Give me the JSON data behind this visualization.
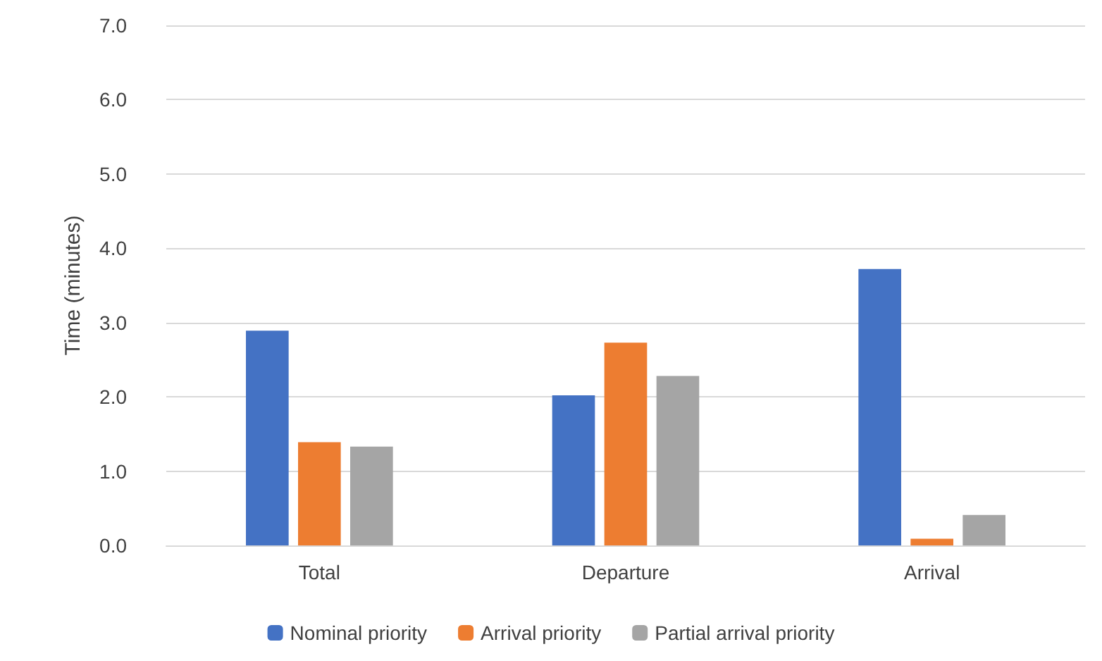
{
  "chart_data": {
    "type": "bar",
    "ylabel": "Time (minutes)",
    "categories": [
      "Total",
      "Departure",
      "Arrival"
    ],
    "series": [
      {
        "name": "Nominal priority",
        "color": "#4472c4",
        "values": [
          2.89,
          2.02,
          3.72
        ]
      },
      {
        "name": "Arrival priority",
        "color": "#ed7d31",
        "values": [
          1.39,
          2.73,
          0.09
        ]
      },
      {
        "name": "Partial arrival priority",
        "color": "#a5a5a5",
        "values": [
          1.33,
          2.28,
          0.41
        ]
      }
    ],
    "ylim": [
      0,
      7
    ],
    "yticks": [
      {
        "value": 0,
        "label": "0.0"
      },
      {
        "value": 1,
        "label": "1.0"
      },
      {
        "value": 2,
        "label": "2.0"
      },
      {
        "value": 3,
        "label": "3.0"
      },
      {
        "value": 4,
        "label": "4.0"
      },
      {
        "value": 5,
        "label": "5.0"
      },
      {
        "value": 6,
        "label": "6.0"
      },
      {
        "value": 7,
        "label": "7.0"
      }
    ],
    "grid": "y",
    "legend": "bottom"
  }
}
